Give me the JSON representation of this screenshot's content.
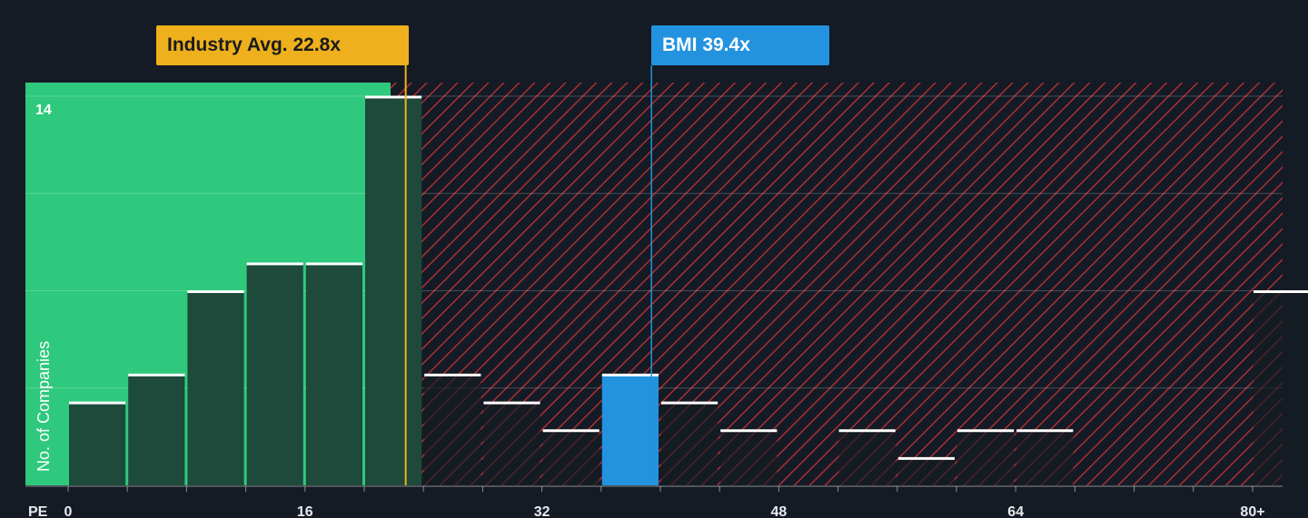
{
  "chart_data": {
    "type": "bar",
    "xlabel": "PE",
    "ylabel": "No. of Companies",
    "x_tick_labels": [
      "0",
      "16",
      "32",
      "48",
      "64",
      "80+"
    ],
    "x_tick_values": [
      0,
      16,
      32,
      48,
      64,
      80
    ],
    "y_tick_labels": [
      "14"
    ],
    "y_grid_values": [
      3.5,
      7,
      10.5,
      14
    ],
    "xlim": [
      -3,
      82
    ],
    "ylim": [
      0,
      14.5
    ],
    "bin_width": 4,
    "bins": [
      {
        "start": 0,
        "value": 3
      },
      {
        "start": 4,
        "value": 4
      },
      {
        "start": 8,
        "value": 7
      },
      {
        "start": 12,
        "value": 8
      },
      {
        "start": 16,
        "value": 8
      },
      {
        "start": 20,
        "value": 14
      },
      {
        "start": 24,
        "value": 4
      },
      {
        "start": 28,
        "value": 3
      },
      {
        "start": 32,
        "value": 2
      },
      {
        "start": 36,
        "value": 4,
        "highlight": true
      },
      {
        "start": 40,
        "value": 3
      },
      {
        "start": 44,
        "value": 2
      },
      {
        "start": 48,
        "value": 0
      },
      {
        "start": 52,
        "value": 2
      },
      {
        "start": 56,
        "value": 1
      },
      {
        "start": 60,
        "value": 2
      },
      {
        "start": 64,
        "value": 2
      },
      {
        "start": 68,
        "value": 0
      },
      {
        "start": 72,
        "value": 0
      },
      {
        "start": 76,
        "value": 0
      },
      {
        "start": 80,
        "value": 7
      }
    ],
    "industry_avg": {
      "label": "Industry Avg. 22.8x",
      "value": 22.8
    },
    "subject": {
      "label": "BMI 39.4x",
      "value": 39.4
    },
    "colors": {
      "background": "#151b24",
      "fair_zone": "#2ec97d",
      "overvalued_hatch": "#c0313a",
      "bar_fill": "#1d4a3a",
      "bar_outline": "#ffffff",
      "industry_line": "#eeb11d",
      "subject_bar": "#2393e0"
    }
  }
}
